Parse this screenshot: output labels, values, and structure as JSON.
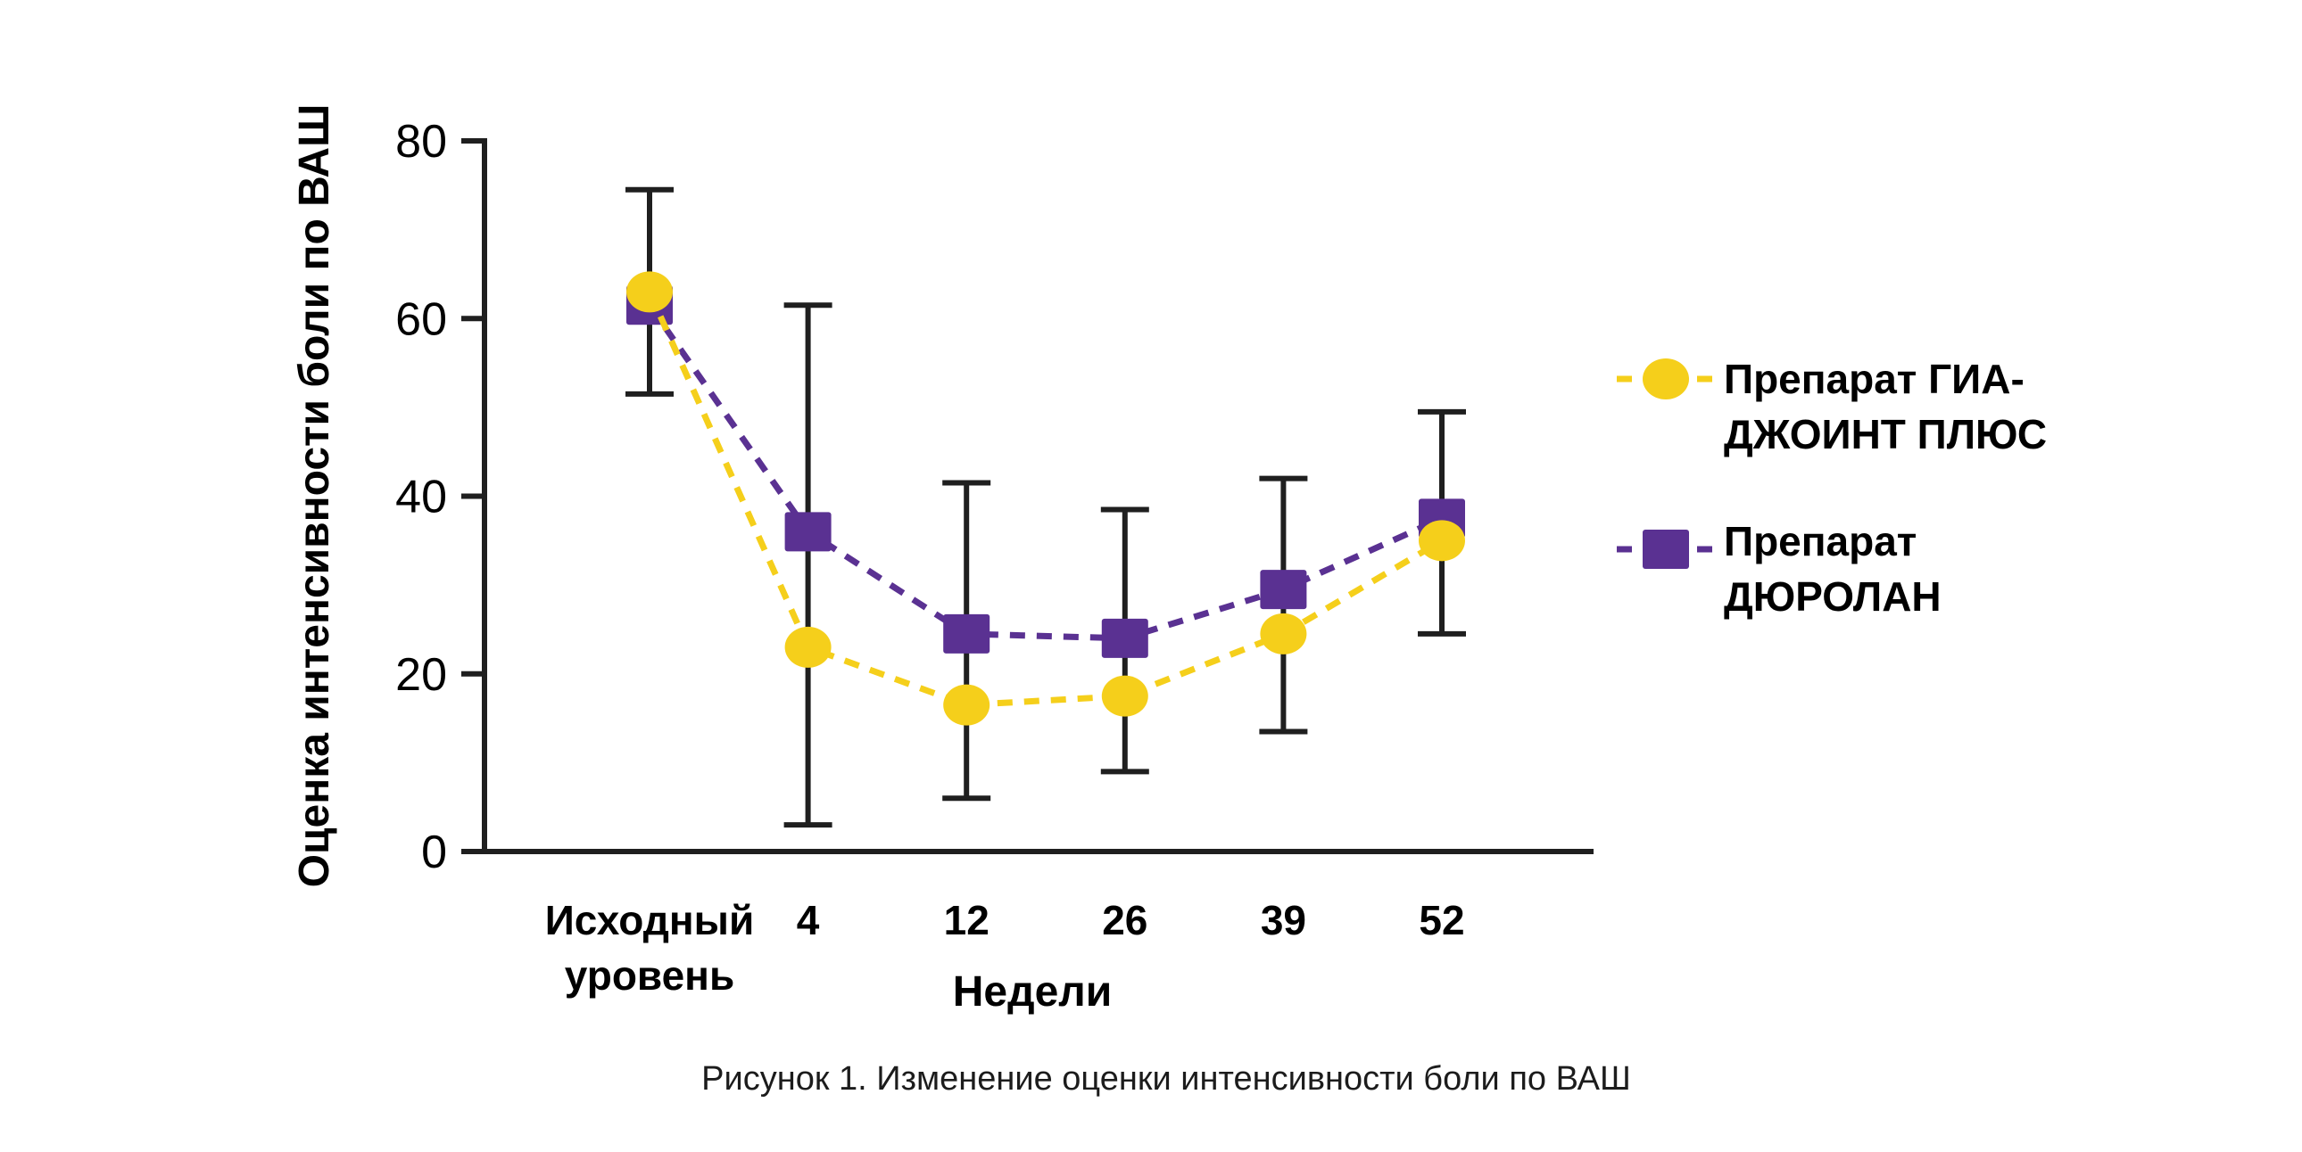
{
  "figure": {
    "caption": "Рисунок 1. Изменение оценки интенсивности боли по ВАШ"
  },
  "colors": {
    "background": "#ffffff",
    "axis": "#1f1f1f",
    "text": "#000000",
    "series_yellow": "#F5CF1B",
    "series_purple": "#5A3192"
  },
  "chart_data": {
    "type": "line",
    "title": "",
    "xlabel": "Недели",
    "ylabel": "Оценка интенсивности боли по ВАШ",
    "categories": [
      "Исходный уровень",
      "4",
      "12",
      "26",
      "39",
      "52"
    ],
    "x_tick_lines": [
      [
        "Исходный",
        "уровень"
      ],
      [
        "4"
      ],
      [
        "12"
      ],
      [
        "26"
      ],
      [
        "39"
      ],
      [
        "52"
      ]
    ],
    "ylim": [
      0,
      80
    ],
    "yticks": [
      0,
      20,
      40,
      60,
      80
    ],
    "grid": false,
    "legend_position": "right",
    "line_style": "dashed",
    "series": [
      {
        "name": "Препарат ГИА-ДЖОИНТ ПЛЮС",
        "legend_lines": [
          "Препарат ГИА-",
          "ДЖОИНТ ПЛЮС"
        ],
        "marker": "circle",
        "color": "#F5CF1B",
        "values": [
          63,
          23,
          16.5,
          17.5,
          24.5,
          35
        ]
      },
      {
        "name": "Препарат ДЮРОЛАН",
        "legend_lines": [
          "Препарат",
          "ДЮРОЛАН"
        ],
        "marker": "square",
        "color": "#5A3192",
        "values": [
          61.5,
          36,
          24.5,
          24,
          29.5,
          37.5
        ]
      }
    ],
    "error_bars": {
      "color": "#1f1f1f",
      "ranges": [
        [
          51.5,
          74.5
        ],
        [
          3,
          61.5
        ],
        [
          6,
          41.5
        ],
        [
          9,
          38.5
        ],
        [
          13.5,
          42
        ],
        [
          24.5,
          49.5
        ]
      ]
    }
  }
}
